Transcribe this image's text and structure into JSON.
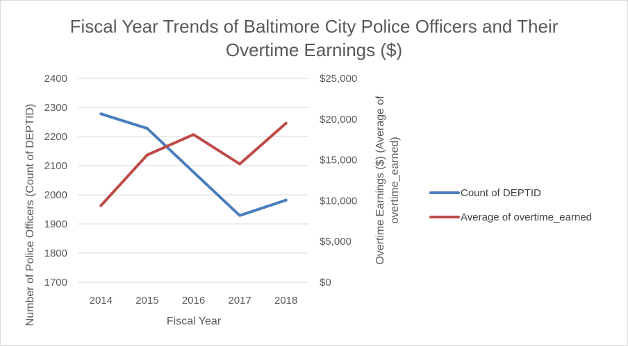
{
  "chart_data": {
    "type": "line",
    "title_lines": [
      "Fiscal Year Trends of Baltimore City Police Officers and Their",
      "Overtime Earnings ($)"
    ],
    "categories": [
      "2014",
      "2015",
      "2016",
      "2017",
      "2018"
    ],
    "xlabel": "Fiscal Year",
    "y_left": {
      "label": "Number of Police Officers (Count of DEPTID)",
      "ylim": [
        1700,
        2400
      ],
      "ticks": [
        "1700",
        "1800",
        "1900",
        "2000",
        "2100",
        "2200",
        "2300",
        "2400"
      ]
    },
    "y_right": {
      "label_lines": [
        "Overtime Earnings ($) (Average of",
        "overtime_earned)"
      ],
      "ylim": [
        0,
        25000
      ],
      "ticks": [
        "$0",
        "$5,000",
        "$10,000",
        "$15,000",
        "$20,000",
        "$25,000"
      ]
    },
    "series": [
      {
        "name": "Count of DEPTID",
        "axis": "left",
        "color": "#4a7ebb",
        "values": [
          2278,
          2228,
          2078,
          1929,
          1982
        ]
      },
      {
        "name": "Average of overtime_earned",
        "axis": "right",
        "color": "#be4b48",
        "values": [
          9400,
          15600,
          18100,
          14500,
          19500
        ]
      }
    ],
    "grid": true,
    "legend_position": "right"
  }
}
